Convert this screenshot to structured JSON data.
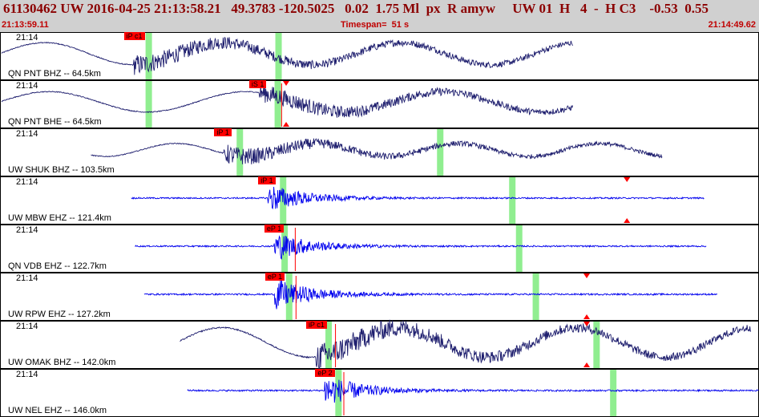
{
  "header": {
    "title": "61130462 UW 2016-04-25 21:13:58.21   49.3783 -120.5025   0.02  1.75 Ml  px  R amyw     UW 01  H   4  -  H C3    -0.53  0.55",
    "start_time": "21:13:59.11",
    "timespan": "Timespan=  51 s",
    "end_time": "21:14:49.62"
  },
  "colors": {
    "header_bg": "#d0d0d0",
    "header_text": "#8b0000",
    "trace_dark": "#1e1e6e",
    "trace_blue": "#0000ee",
    "pick": "#ff0000",
    "window": "#90ee90"
  },
  "panels": [
    {
      "label": "QN PNT BHZ -- 64.5km",
      "time": "21:14",
      "pick": "iP c1",
      "start": 0.002,
      "end": 0.755,
      "pick_x": 0.176,
      "green": [
        0.196,
        0.367
      ],
      "red_line": null,
      "triangles": [],
      "style": "dark-long",
      "amp": 0.6
    },
    {
      "label": "QN PNT BHE -- 64.5km",
      "time": "21:14",
      "pick": "iS 1",
      "start": 0.002,
      "end": 0.755,
      "pick_x": 0.341,
      "green": [
        0.196,
        0.366
      ],
      "red_line": 0.371,
      "triangles": [
        0.377
      ],
      "style": "dark-long",
      "amp": 0.55
    },
    {
      "label": "UW SHUK BHZ -- 103.5km",
      "time": "21:14",
      "pick": "iP 1",
      "start": 0.12,
      "end": 0.873,
      "pick_x": 0.295,
      "green": [
        0.316,
        0.58
      ],
      "red_line": null,
      "triangles": [],
      "style": "dark-mixed",
      "amp": 0.55
    },
    {
      "label": "UW MBW EHZ -- 121.4km",
      "time": "21:14",
      "pick": "iP 1",
      "start": 0.173,
      "end": 0.928,
      "pick_x": 0.353,
      "green": [
        0.373,
        0.675
      ],
      "red_line": null,
      "triangles": [
        0.826
      ],
      "style": "blue",
      "amp": 0.55
    },
    {
      "label": "QN VDB EHZ -- 122.7km",
      "time": "21:14",
      "pick": "eP 1",
      "start": 0.178,
      "end": 0.931,
      "pick_x": 0.361,
      "green": [
        0.375,
        0.684
      ],
      "red_line": 0.389,
      "triangles": [],
      "style": "blue",
      "amp": 0.55
    },
    {
      "label": "UW RPW EHZ -- 127.2km",
      "time": "21:14",
      "pick": "eP 1",
      "start": 0.19,
      "end": 0.945,
      "pick_x": 0.362,
      "green": [
        0.381,
        0.706
      ],
      "red_line": 0.39,
      "triangles": [
        0.773
      ],
      "style": "blue",
      "amp": 0.6
    },
    {
      "label": "UW OMAK BHZ -- 142.0km",
      "time": "21:14",
      "pick": "iP c1",
      "start": 0.237,
      "end": 0.99,
      "pick_x": 0.416,
      "green": [
        0.433,
        0.786
      ],
      "red_line": 0.442,
      "triangles": [
        0.773
      ],
      "style": "dark-long",
      "amp": 0.8
    },
    {
      "label": "UW NEL EHZ -- 146.0km",
      "time": "21:14",
      "pick": "eP 2",
      "start": 0.247,
      "end": 1.0,
      "pick_x": 0.428,
      "green": [
        0.446,
        0.808
      ],
      "red_line": 0.453,
      "triangles": [],
      "style": "blue",
      "amp": 0.6
    }
  ]
}
